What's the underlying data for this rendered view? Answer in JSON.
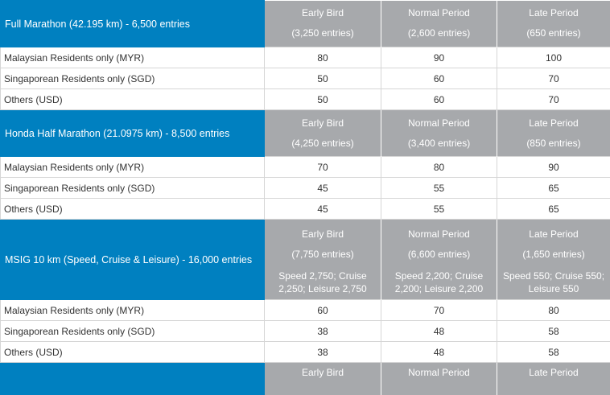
{
  "sections": [
    {
      "title": "Full Marathon (42.195 km) - 6,500 entries",
      "periods": [
        {
          "name": "Early Bird",
          "entries": "(3,250 entries)",
          "alloc": ""
        },
        {
          "name": "Normal Period",
          "entries": "(2,600 entries)",
          "alloc": ""
        },
        {
          "name": "Late Period",
          "entries": "(650 entries)",
          "alloc": ""
        }
      ],
      "rows": [
        {
          "label": "Malaysian Residents only (MYR)",
          "values": [
            "80",
            "90",
            "100"
          ]
        },
        {
          "label": "Singaporean Residents only (SGD)",
          "values": [
            "50",
            "60",
            "70"
          ]
        },
        {
          "label": "Others (USD)",
          "values": [
            "50",
            "60",
            "70"
          ]
        }
      ]
    },
    {
      "title": "Honda Half Marathon (21.0975 km) - 8,500 entries",
      "periods": [
        {
          "name": "Early Bird",
          "entries": "(4,250 entries)",
          "alloc": ""
        },
        {
          "name": "Normal Period",
          "entries": "(3,400 entries)",
          "alloc": ""
        },
        {
          "name": "Late Period",
          "entries": "(850 entries)",
          "alloc": ""
        }
      ],
      "rows": [
        {
          "label": "Malaysian Residents only (MYR)",
          "values": [
            "70",
            "80",
            "90"
          ]
        },
        {
          "label": "Singaporean Residents only (SGD)",
          "values": [
            "45",
            "55",
            "65"
          ]
        },
        {
          "label": "Others (USD)",
          "values": [
            "45",
            "55",
            "65"
          ]
        }
      ]
    },
    {
      "title": "MSIG 10 km (Speed, Cruise & Leisure) - 16,000 entries",
      "periods": [
        {
          "name": "Early Bird",
          "entries": "(7,750 entries)",
          "alloc": "Speed 2,750; Cruise 2,250; Leisure 2,750"
        },
        {
          "name": "Normal Period",
          "entries": "(6,600 entries)",
          "alloc": "Speed 2,200; Cruise 2,200; Leisure 2,200"
        },
        {
          "name": "Late Period",
          "entries": "(1,650 entries)",
          "alloc": "Speed 550; Cruise 550; Leisure 550"
        }
      ],
      "rows": [
        {
          "label": "Malaysian Residents only (MYR)",
          "values": [
            "60",
            "70",
            "80"
          ]
        },
        {
          "label": "Singaporean Residents only (SGD)",
          "values": [
            "38",
            "48",
            "58"
          ]
        },
        {
          "label": "Others (USD)",
          "values": [
            "38",
            "48",
            "58"
          ]
        }
      ]
    },
    {
      "title": "",
      "periods": [
        {
          "name": "Early Bird",
          "entries": "",
          "alloc": ""
        },
        {
          "name": "Normal Period",
          "entries": "",
          "alloc": ""
        },
        {
          "name": "Late Period",
          "entries": "",
          "alloc": ""
        }
      ],
      "rows": []
    }
  ]
}
